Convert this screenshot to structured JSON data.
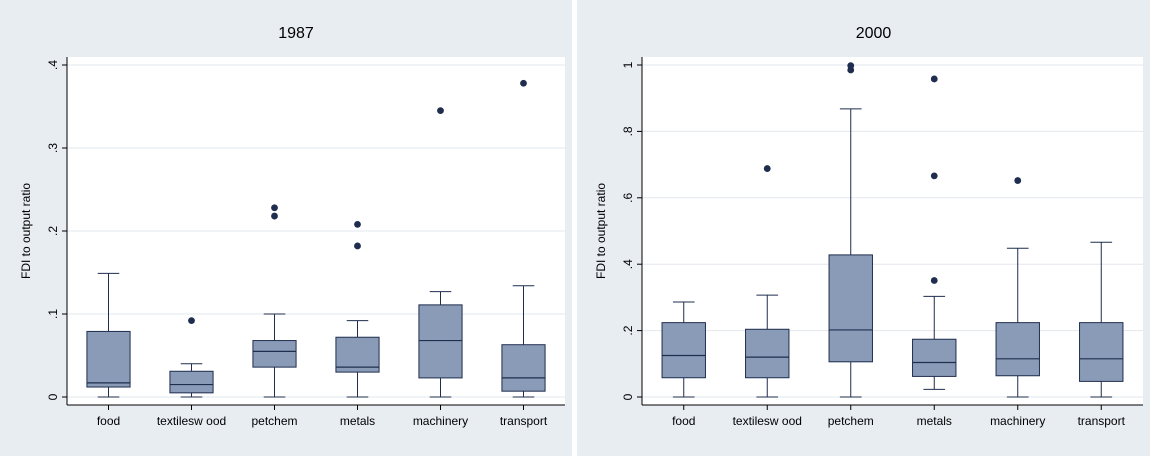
{
  "colors": {
    "panel_background": "#e8edf2",
    "plot_background": "#ffffff",
    "grid": "#e3e8ee",
    "box_fill": "#8a9bb8",
    "box_stroke": "#1f2d4e",
    "whisker": "#1f2d4e",
    "outlier": "#1f2d4e"
  },
  "chart_data": [
    {
      "type": "box",
      "title": "1987",
      "ylabel": "FDI to output ratio",
      "xlabel": "",
      "categories": [
        "food",
        "textilesw ood",
        "petchem",
        "metals",
        "machinery",
        "transport"
      ],
      "ylim": [
        0,
        0.4
      ],
      "yticks": [
        0,
        0.1,
        0.2,
        0.3,
        0.4
      ],
      "ytick_labels": [
        "0",
        ".1",
        ".2",
        ".3",
        ".4"
      ],
      "grid": true,
      "boxes": [
        {
          "category": "food",
          "whisker_low": 0,
          "q1": 0.012,
          "median": 0.017,
          "q3": 0.079,
          "whisker_high": 0.149,
          "outliers": []
        },
        {
          "category": "textilesw ood",
          "whisker_low": 0,
          "q1": 0.005,
          "median": 0.015,
          "q3": 0.031,
          "whisker_high": 0.04,
          "outliers": [
            0.092
          ]
        },
        {
          "category": "petchem",
          "whisker_low": 0,
          "q1": 0.036,
          "median": 0.055,
          "q3": 0.068,
          "whisker_high": 0.1,
          "outliers": [
            0.218,
            0.228
          ]
        },
        {
          "category": "metals",
          "whisker_low": 0,
          "q1": 0.03,
          "median": 0.036,
          "q3": 0.072,
          "whisker_high": 0.092,
          "outliers": [
            0.182,
            0.208
          ]
        },
        {
          "category": "machinery",
          "whisker_low": 0,
          "q1": 0.023,
          "median": 0.068,
          "q3": 0.111,
          "whisker_high": 0.127,
          "outliers": [
            0.345
          ]
        },
        {
          "category": "transport",
          "whisker_low": 0,
          "q1": 0.007,
          "median": 0.023,
          "q3": 0.063,
          "whisker_high": 0.134,
          "outliers": [
            0.378
          ]
        }
      ]
    },
    {
      "type": "box",
      "title": "2000",
      "ylabel": "FDI to output ratio",
      "xlabel": "",
      "categories": [
        "food",
        "textilesw ood",
        "petchem",
        "metals",
        "machinery",
        "transport"
      ],
      "ylim": [
        0,
        1
      ],
      "yticks": [
        0,
        0.2,
        0.4,
        0.6,
        0.8,
        1
      ],
      "ytick_labels": [
        "0",
        ".2",
        ".4",
        ".6",
        ".8",
        "1"
      ],
      "grid": true,
      "boxes": [
        {
          "category": "food",
          "whisker_low": 0,
          "q1": 0.058,
          "median": 0.125,
          "q3": 0.224,
          "whisker_high": 0.286,
          "outliers": []
        },
        {
          "category": "textilesw ood",
          "whisker_low": 0,
          "q1": 0.058,
          "median": 0.12,
          "q3": 0.204,
          "whisker_high": 0.307,
          "outliers": [
            0.688
          ]
        },
        {
          "category": "petchem",
          "whisker_low": 0,
          "q1": 0.106,
          "median": 0.202,
          "q3": 0.428,
          "whisker_high": 0.868,
          "outliers": [
            0.985,
            0.998
          ]
        },
        {
          "category": "metals",
          "whisker_low": 0.023,
          "q1": 0.062,
          "median": 0.104,
          "q3": 0.174,
          "whisker_high": 0.303,
          "outliers": [
            0.351,
            0.666,
            0.958
          ]
        },
        {
          "category": "machinery",
          "whisker_low": 0,
          "q1": 0.064,
          "median": 0.115,
          "q3": 0.224,
          "whisker_high": 0.448,
          "outliers": [
            0.652
          ]
        },
        {
          "category": "transport",
          "whisker_low": 0,
          "q1": 0.047,
          "median": 0.115,
          "q3": 0.224,
          "whisker_high": 0.466,
          "outliers": []
        }
      ]
    }
  ]
}
